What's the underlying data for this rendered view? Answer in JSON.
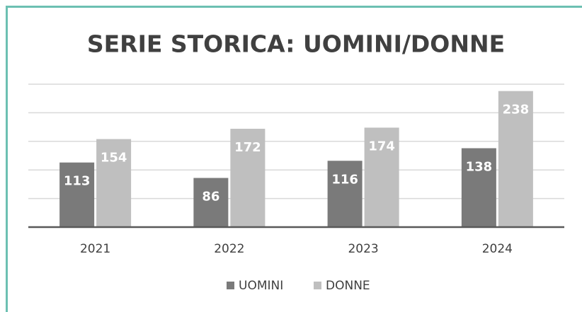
{
  "chart_data": {
    "type": "bar",
    "title": "SERIE STORICA: UOMINI/DONNE",
    "categories": [
      "2021",
      "2022",
      "2023",
      "2024"
    ],
    "series": [
      {
        "name": "UOMINI",
        "color": "#7a7a7a",
        "values": [
          113,
          86,
          116,
          138
        ]
      },
      {
        "name": "DONNE",
        "color": "#bfbfbf",
        "values": [
          154,
          172,
          174,
          238
        ]
      }
    ],
    "ylim": [
      0,
      250
    ],
    "yticks": [
      0,
      50,
      100,
      150,
      200,
      250
    ],
    "grid": true,
    "legend": "bottom"
  }
}
